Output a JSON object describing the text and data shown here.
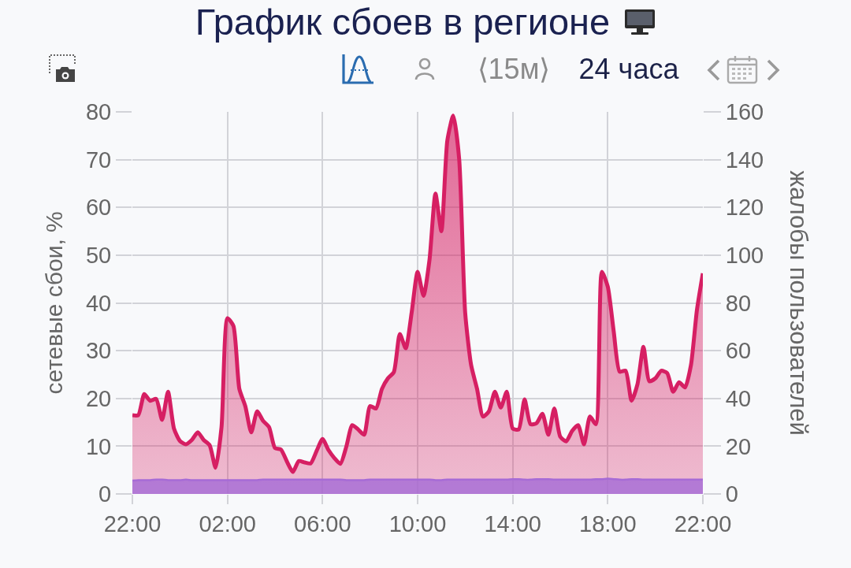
{
  "chart_data": {
    "type": "area",
    "title": "График сбоев в регионе",
    "ylabel": "сетевые сбои, %",
    "y2label": "жалобы пользователей",
    "annotations": [
      "⟨15м⟩",
      "24 часа"
    ],
    "categories": [
      "22:00",
      null,
      null,
      null,
      null,
      null,
      null,
      null,
      null,
      null,
      null,
      null,
      null,
      null,
      null,
      null,
      "02:00",
      null,
      null,
      null,
      null,
      null,
      null,
      null,
      null,
      null,
      null,
      null,
      null,
      null,
      null,
      null,
      "06:00",
      null,
      null,
      null,
      null,
      null,
      null,
      null,
      null,
      null,
      null,
      null,
      null,
      null,
      null,
      null,
      "10:00",
      null,
      null,
      null,
      null,
      null,
      null,
      null,
      null,
      null,
      null,
      null,
      null,
      null,
      null,
      null,
      "14:00",
      null,
      null,
      null,
      null,
      null,
      null,
      null,
      null,
      null,
      null,
      null,
      null,
      null,
      null,
      null,
      "18:00",
      null,
      null,
      null,
      null,
      null,
      null,
      null,
      null,
      null,
      null,
      null,
      null,
      null,
      null,
      null,
      "22:00"
    ],
    "ylim": [
      0,
      80
    ],
    "yticks": [
      0,
      10,
      20,
      30,
      40,
      50,
      60,
      70,
      80
    ],
    "y2lim": [
      0,
      160
    ],
    "y2ticks": [
      0,
      20,
      40,
      60,
      80,
      100,
      120,
      140,
      160
    ],
    "grid": true,
    "series": [
      {
        "color": "#d61f63",
        "values": [
          16.5,
          16.5,
          20.9,
          19.5,
          19.9,
          15.5,
          21.4,
          13.7,
          11.1,
          10.4,
          11.3,
          12.9,
          11.3,
          10.2,
          5.5,
          14,
          36.8,
          35.2,
          22,
          18.4,
          12.9,
          17.3,
          15.3,
          14,
          9.6,
          9.3,
          6.8,
          4.6,
          6.9,
          6.6,
          6.4,
          9,
          11.5,
          9.2,
          7.5,
          6.3,
          9.9,
          14.4,
          13.5,
          12.4,
          18.4,
          17.9,
          22,
          24.2,
          25.5,
          33.5,
          30.5,
          38,
          46.5,
          41.5,
          49,
          62.9,
          55,
          74,
          79.2,
          70,
          38,
          27,
          22,
          16.2,
          17.3,
          21.4,
          18.1,
          21.4,
          13.7,
          13.5,
          19.8,
          14.6,
          14.8,
          16.8,
          12.4,
          17.9,
          12,
          11,
          13.2,
          14.4,
          10.4,
          16.2,
          14.6,
          46.5,
          43.4,
          34,
          25.6,
          25.8,
          19.5,
          23,
          30.8,
          23.6,
          24.2,
          25.8,
          25.3,
          21.4,
          23.4,
          22.3,
          27,
          38.5,
          46.2
        ]
      },
      {
        "color": "#a66bd6",
        "axis": "y2",
        "values": [
          5.6,
          5.8,
          5.8,
          5.8,
          6,
          6,
          5.8,
          5.8,
          5.8,
          6,
          5.8,
          5.8,
          5.8,
          5.8,
          5.8,
          5.8,
          5.8,
          5.8,
          5.8,
          5.8,
          5.8,
          5.8,
          6,
          6,
          6,
          6,
          6,
          6,
          6,
          6,
          6,
          6,
          6,
          6,
          6,
          6,
          5.8,
          5.8,
          5.8,
          5.8,
          6,
          6,
          6,
          6,
          6,
          6,
          6,
          6,
          6,
          6,
          6,
          5.8,
          5.8,
          6,
          6,
          6,
          6,
          6,
          6,
          6,
          6,
          6,
          6,
          6,
          6.2,
          6.2,
          6,
          6,
          6.2,
          6.2,
          6.2,
          6,
          6,
          6,
          6,
          6,
          6,
          6,
          6.2,
          6.2,
          6.4,
          6.2,
          6,
          6,
          6.2,
          6.2,
          6,
          6,
          6,
          6,
          6,
          6,
          6,
          6,
          6,
          6,
          6
        ]
      }
    ]
  }
}
